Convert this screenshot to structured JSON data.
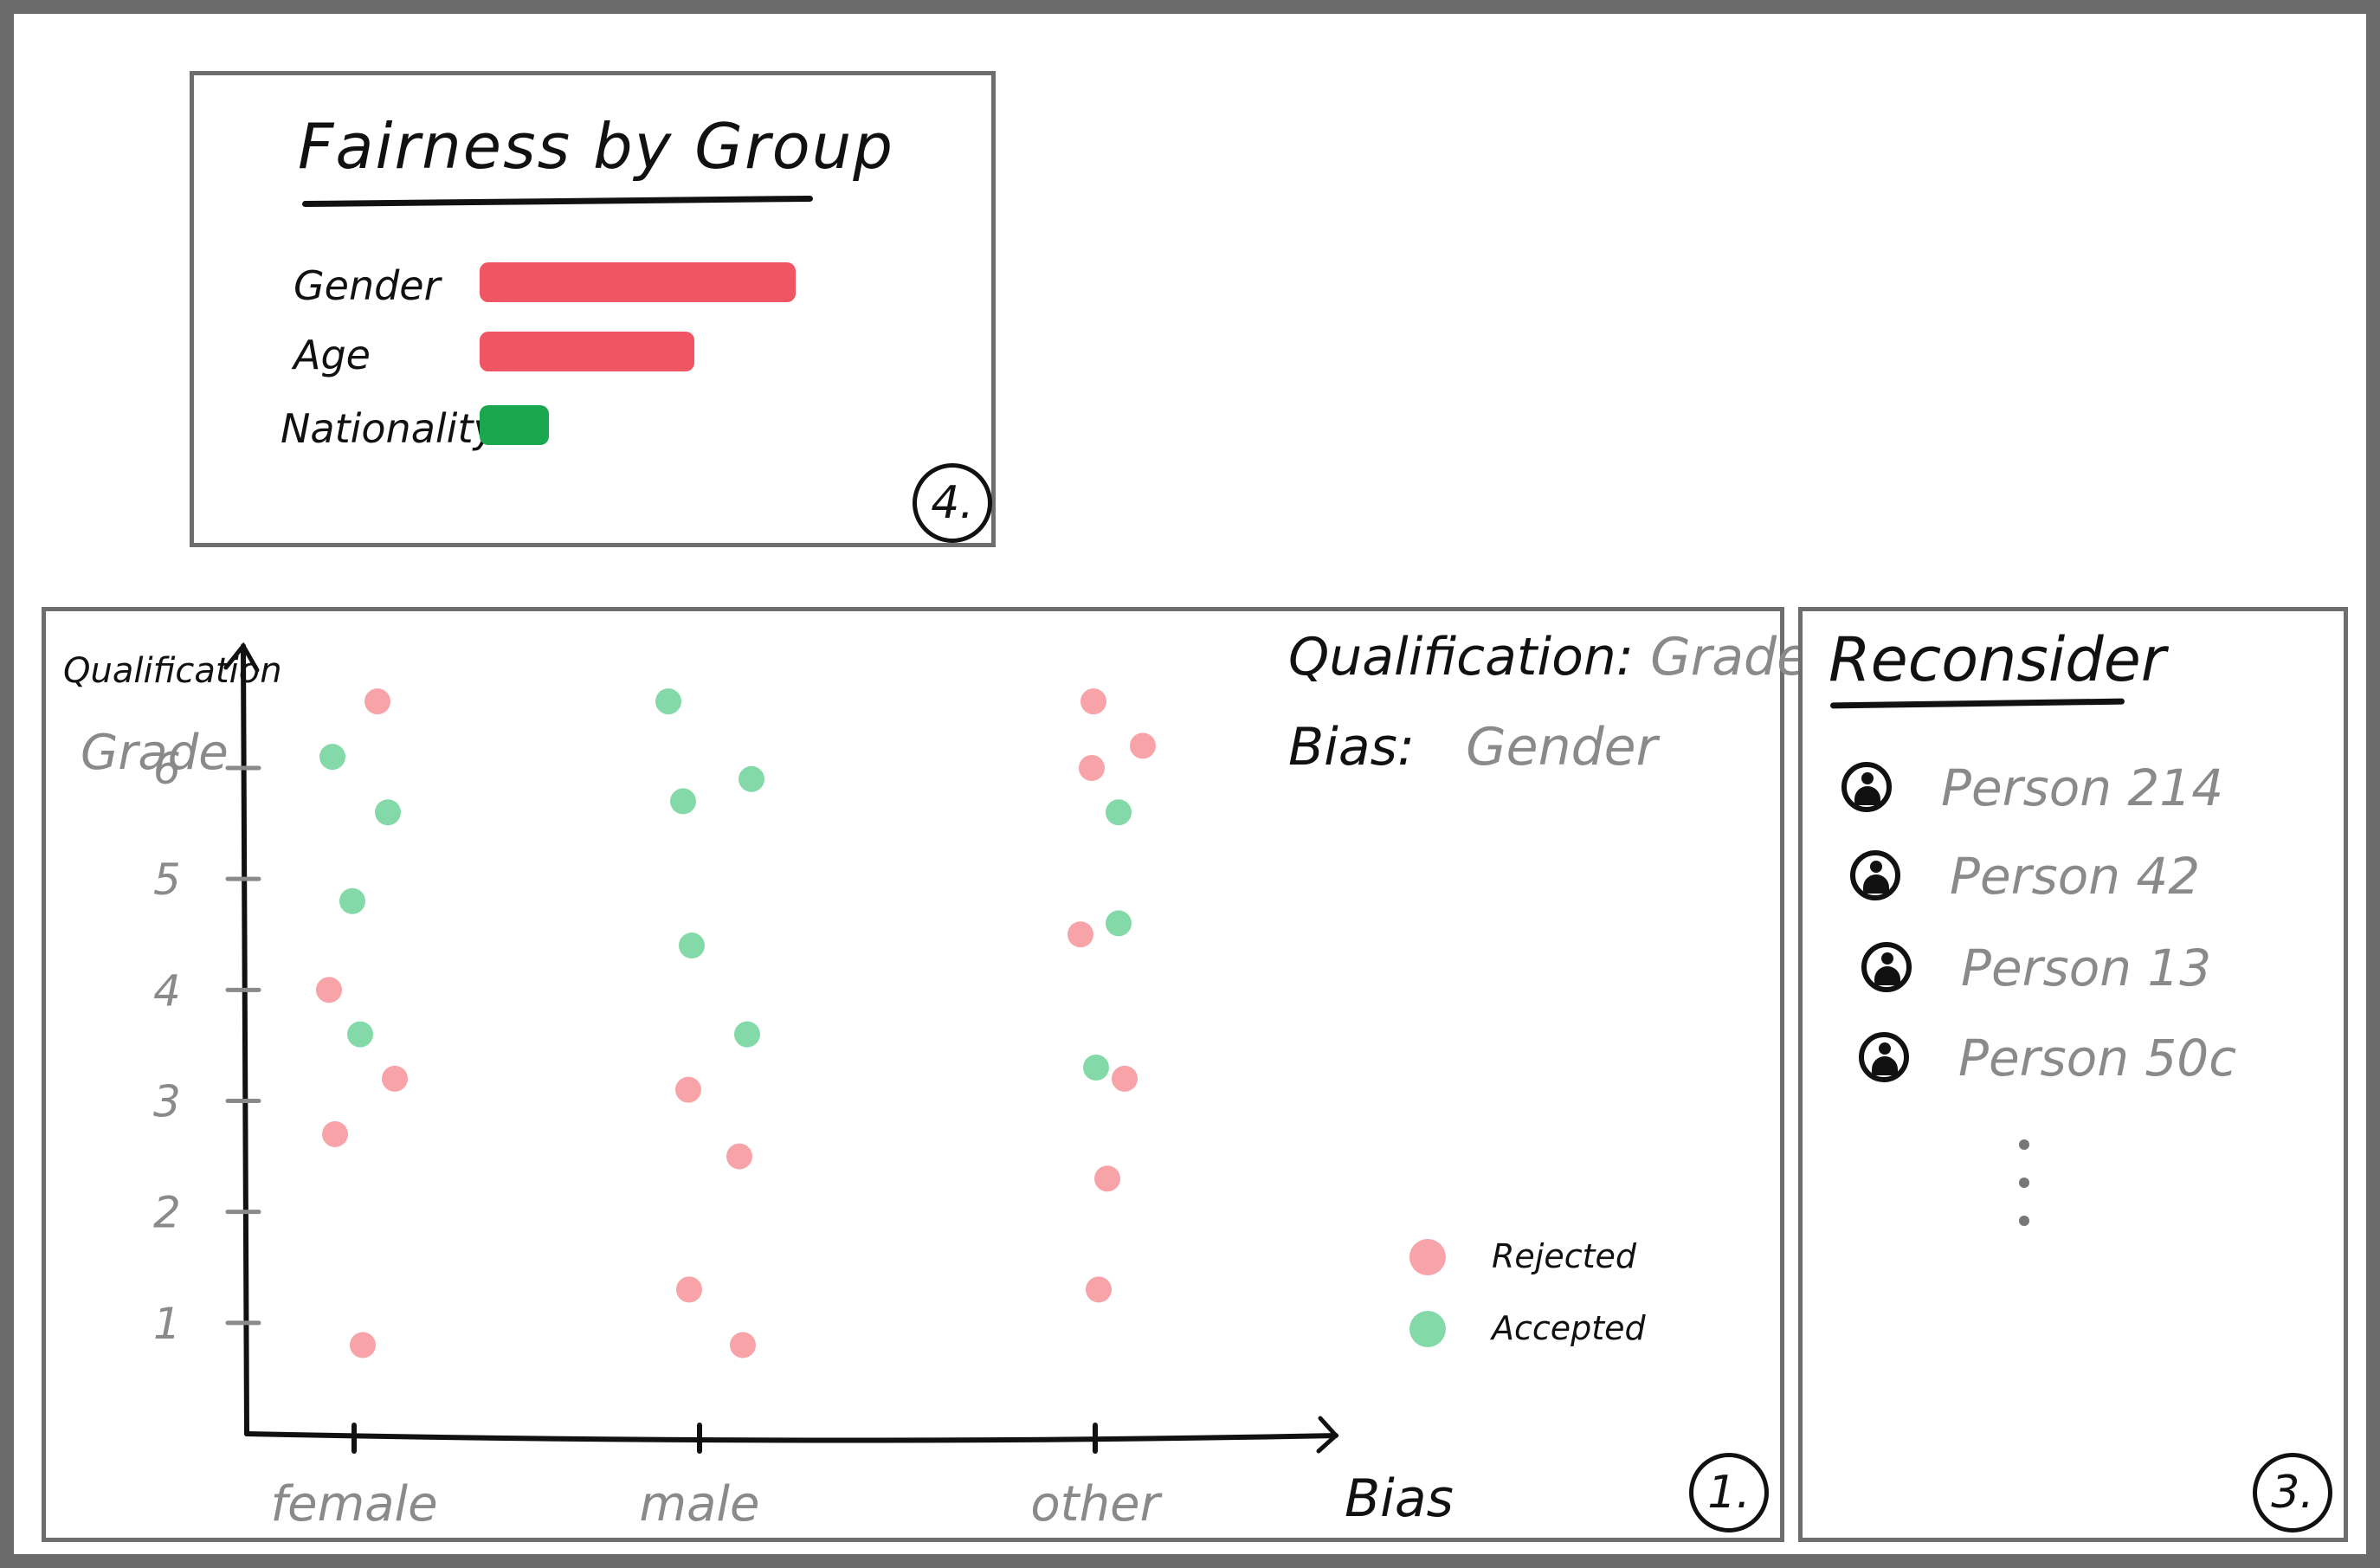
{
  "fairness": {
    "title": "Fairness by Group",
    "panel_number": "4.",
    "rows": [
      {
        "label": "Gender",
        "value": 1.0,
        "color": "#f05563"
      },
      {
        "label": "Age",
        "value": 0.68,
        "color": "#f05563"
      },
      {
        "label": "Nationality",
        "value": 0.22,
        "color": "#1aa84f"
      }
    ]
  },
  "scatter": {
    "panel_number": "1.",
    "info": {
      "qualification_label": "Qualification:",
      "qualification_value": "Grade",
      "bias_label": "Bias:",
      "bias_value": "Gender"
    },
    "legend": {
      "rejected": "Rejected",
      "accepted": "Accepted"
    },
    "colors": {
      "rejected": "#f7a3a8",
      "accepted": "#84d9a8",
      "axis": "#111111",
      "tick_label": "#8a8a8a"
    }
  },
  "chart_data": {
    "type": "scatter",
    "ylabel": "Qualification",
    "ysublabel": "Grade",
    "xlabel": "Bias",
    "categories": [
      "female",
      "male",
      "other"
    ],
    "yticks": [
      1,
      2,
      3,
      4,
      5,
      6
    ],
    "ylim": [
      0,
      7.1
    ],
    "series": [
      {
        "name": "Rejected",
        "points": [
          {
            "x": "female",
            "offset": 0.27,
            "y": 6.6
          },
          {
            "x": "female",
            "offset": -0.29,
            "y": 4.0
          },
          {
            "x": "female",
            "offset": 0.47,
            "y": 3.2
          },
          {
            "x": "female",
            "offset": -0.22,
            "y": 2.7
          },
          {
            "x": "female",
            "offset": 0.1,
            "y": 0.8
          },
          {
            "x": "male",
            "offset": -0.13,
            "y": 3.1
          },
          {
            "x": "male",
            "offset": 0.46,
            "y": 2.5
          },
          {
            "x": "male",
            "offset": -0.12,
            "y": 1.3
          },
          {
            "x": "male",
            "offset": 0.5,
            "y": 0.8
          },
          {
            "x": "other",
            "offset": -0.02,
            "y": 6.6
          },
          {
            "x": "other",
            "offset": -0.04,
            "y": 6.0
          },
          {
            "x": "other",
            "offset": 0.55,
            "y": 6.2
          },
          {
            "x": "other",
            "offset": -0.17,
            "y": 4.5
          },
          {
            "x": "other",
            "offset": 0.34,
            "y": 3.2
          },
          {
            "x": "other",
            "offset": 0.14,
            "y": 2.3
          },
          {
            "x": "other",
            "offset": 0.04,
            "y": 1.3
          }
        ]
      },
      {
        "name": "Accepted",
        "points": [
          {
            "x": "female",
            "offset": -0.25,
            "y": 6.1
          },
          {
            "x": "female",
            "offset": 0.39,
            "y": 5.6
          },
          {
            "x": "female",
            "offset": -0.02,
            "y": 4.8
          },
          {
            "x": "female",
            "offset": 0.07,
            "y": 3.6
          },
          {
            "x": "male",
            "offset": -0.36,
            "y": 6.6
          },
          {
            "x": "male",
            "offset": -0.19,
            "y": 5.7
          },
          {
            "x": "male",
            "offset": 0.6,
            "y": 5.9
          },
          {
            "x": "male",
            "offset": -0.09,
            "y": 4.4
          },
          {
            "x": "male",
            "offset": 0.55,
            "y": 3.6
          },
          {
            "x": "other",
            "offset": 0.27,
            "y": 5.6
          },
          {
            "x": "other",
            "offset": 0.27,
            "y": 4.6
          },
          {
            "x": "other",
            "offset": 0.01,
            "y": 3.3
          }
        ]
      }
    ]
  },
  "reconsider": {
    "title": "Reconsider",
    "panel_number": "3.",
    "items": [
      {
        "label": "Person 214"
      },
      {
        "label": "Person 42"
      },
      {
        "label": "Person 13"
      },
      {
        "label": "Person 50c"
      }
    ]
  }
}
